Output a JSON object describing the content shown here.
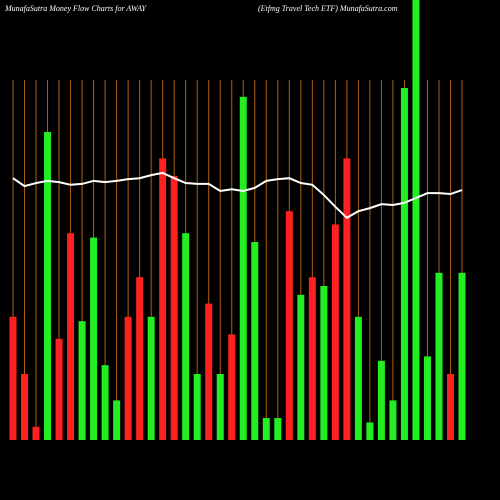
{
  "chart_data": {
    "type": "bar",
    "title": "MunafaSutra  Money Flow  Charts for AWAY",
    "subtitle": "(Etfmg Travel Tech ETF) MunafaSutra.com",
    "categories": [
      null,
      null,
      null,
      null,
      null,
      null,
      null,
      null,
      null,
      null,
      null,
      null,
      null,
      null,
      null,
      null,
      null,
      null,
      null,
      null,
      null,
      null,
      null,
      null,
      null,
      null,
      null,
      null,
      null,
      null,
      null,
      null,
      null,
      null,
      null,
      null,
      null,
      null,
      null,
      null
    ],
    "values": [
      28,
      15,
      3,
      70,
      23,
      47,
      27,
      46,
      17,
      9,
      28,
      37,
      28,
      64,
      60,
      47,
      15,
      31,
      15,
      24,
      78,
      45,
      5,
      5,
      52,
      33,
      37,
      35,
      49,
      64,
      28,
      4,
      18,
      9,
      80,
      100,
      19,
      38,
      15,
      38
    ],
    "colors": [
      "#ff2020",
      "#ff2020",
      "#ff2020",
      "#22ee22",
      "#ff2020",
      "#ff2020",
      "#22ee22",
      "#22ee22",
      "#22ee22",
      "#22ee22",
      "#ff2020",
      "#ff2020",
      "#22ee22",
      "#ff2020",
      "#ff2020",
      "#22ee22",
      "#22ee22",
      "#ff2020",
      "#22ee22",
      "#ff2020",
      "#22ee22",
      "#22ee22",
      "#22ee22",
      "#22ee22",
      "#ff2020",
      "#22ee22",
      "#ff2020",
      "#22ee22",
      "#ff2020",
      "#ff2020",
      "#22ee22",
      "#22ee22",
      "#22ee22",
      "#22ee22",
      "#22ee22",
      "#22ee22",
      "#22ee22",
      "#22ee22",
      "#ff2020",
      "#22ee22"
    ],
    "line": {
      "color": "#ffffff",
      "values": [
        59.5,
        57.7,
        58.4,
        58.9,
        58.6,
        58.0,
        58.2,
        58.9,
        58.6,
        58.9,
        59.3,
        59.5,
        60.2,
        60.7,
        59.5,
        58.4,
        58.2,
        58.2,
        56.6,
        57.0,
        56.6,
        57.3,
        58.9,
        59.3,
        59.5,
        58.4,
        58.0,
        55.7,
        53.0,
        50.5,
        52.0,
        52.7,
        53.6,
        53.4,
        53.9,
        55.0,
        56.1,
        56.1,
        55.9,
        56.8
      ]
    },
    "ylim": [
      0,
      100
    ],
    "grid_color": "#b06010"
  }
}
